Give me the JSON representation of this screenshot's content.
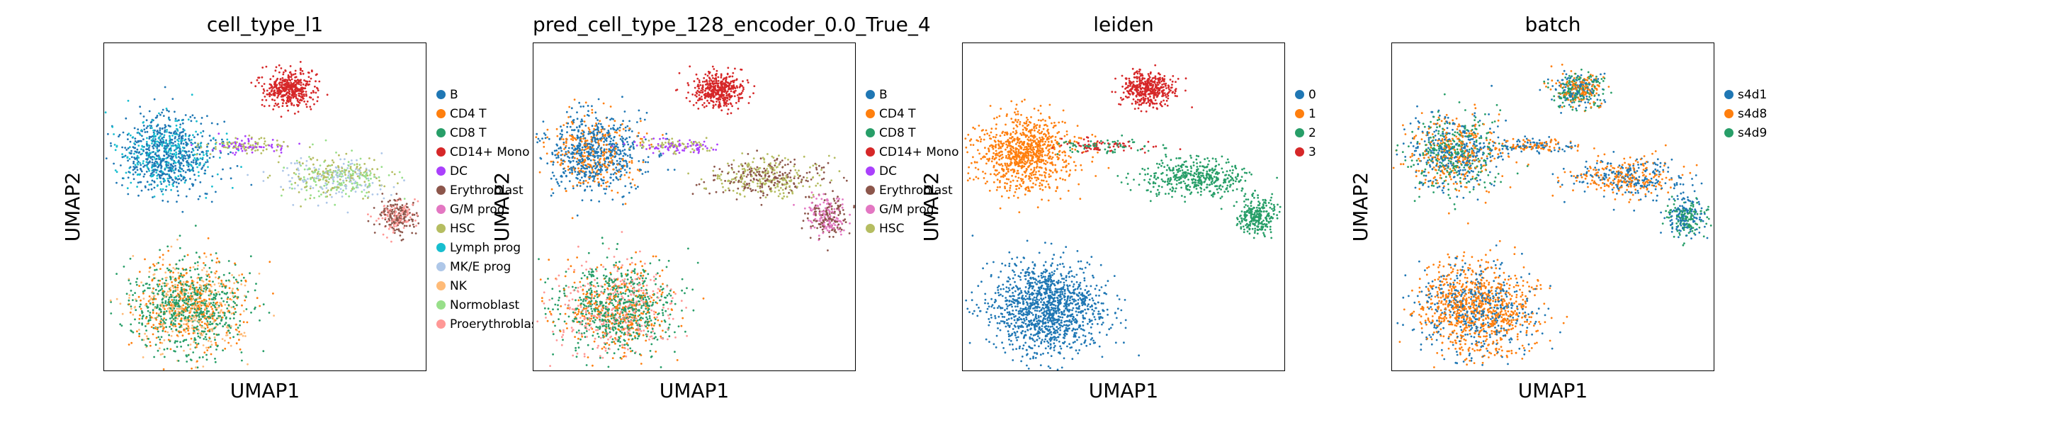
{
  "chart_data": [
    {
      "type": "scatter",
      "title": "cell_type_l1",
      "xlabel": "UMAP1",
      "ylabel": "UMAP2",
      "grid": false,
      "legend": "right",
      "legend_entries": [
        {
          "label": "B",
          "color": "#1f77b4"
        },
        {
          "label": "CD4 T",
          "color": "#ff7f0e"
        },
        {
          "label": "CD8 T",
          "color": "#279e68"
        },
        {
          "label": "CD14+ Mono",
          "color": "#d62728"
        },
        {
          "label": "DC",
          "color": "#aa40fc"
        },
        {
          "label": "Erythroblast",
          "color": "#8c564b"
        },
        {
          "label": "G/M prog",
          "color": "#e377c2"
        },
        {
          "label": "HSC",
          "color": "#b5bd61"
        },
        {
          "label": "Lymph prog",
          "color": "#17becf"
        },
        {
          "label": "MK/E prog",
          "color": "#aec7e8"
        },
        {
          "label": "NK",
          "color": "#ffbb78"
        },
        {
          "label": "Normoblast",
          "color": "#98df8a"
        },
        {
          "label": "Proerythroblast",
          "color": "#ff9896"
        }
      ]
    },
    {
      "type": "scatter",
      "title": "pred_cell_type_128_encoder_0.0_True_4",
      "xlabel": "UMAP1",
      "ylabel": "UMAP2",
      "grid": false,
      "legend": "right",
      "legend_entries": [
        {
          "label": "B",
          "color": "#1f77b4"
        },
        {
          "label": "CD4 T",
          "color": "#ff7f0e"
        },
        {
          "label": "CD8 T",
          "color": "#279e68"
        },
        {
          "label": "CD14+ Mono",
          "color": "#d62728"
        },
        {
          "label": "DC",
          "color": "#aa40fc"
        },
        {
          "label": "Erythroblast",
          "color": "#8c564b"
        },
        {
          "label": "G/M prog",
          "color": "#e377c2"
        },
        {
          "label": "HSC",
          "color": "#b5bd61"
        }
      ]
    },
    {
      "type": "scatter",
      "title": "leiden",
      "xlabel": "UMAP1",
      "ylabel": "UMAP2",
      "grid": false,
      "legend": "right",
      "legend_entries": [
        {
          "label": "0",
          "color": "#1f77b4"
        },
        {
          "label": "1",
          "color": "#ff7f0e"
        },
        {
          "label": "2",
          "color": "#279e68"
        },
        {
          "label": "3",
          "color": "#d62728"
        }
      ]
    },
    {
      "type": "scatter",
      "title": "batch",
      "xlabel": "UMAP1",
      "ylabel": "UMAP2",
      "grid": false,
      "legend": "right",
      "legend_entries": [
        {
          "label": "s4d1",
          "color": "#1f77b4"
        },
        {
          "label": "s4d8",
          "color": "#ff7f0e"
        },
        {
          "label": "s4d9",
          "color": "#279e68"
        }
      ]
    }
  ]
}
